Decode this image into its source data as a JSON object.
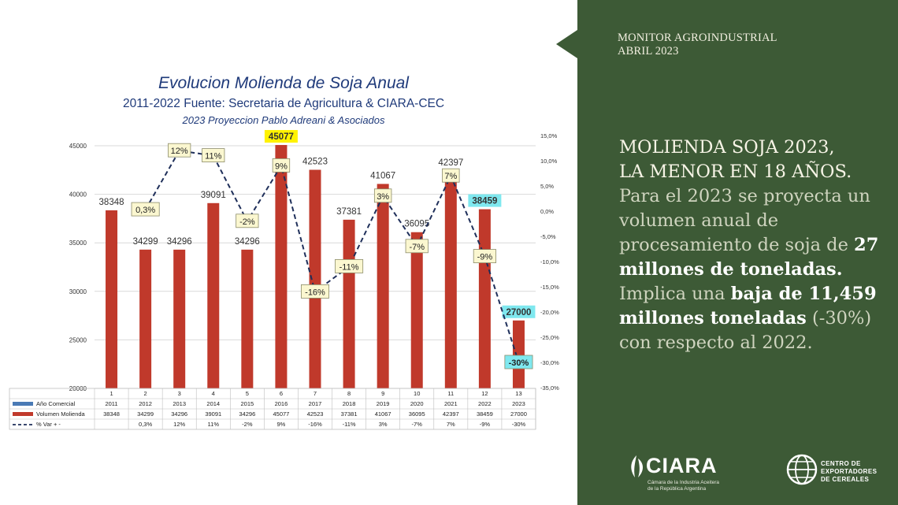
{
  "chart_data": {
    "type": "bar",
    "title": "Evolucion Molienda de Soja Anual",
    "subtitle": "2011-2022 Fuente: Secretaria de Agricultura &  CIARA-CEC",
    "subtitle2": "2023 Proyeccion Pablo Adreani & Asociados",
    "ylim": [
      20000,
      45000
    ],
    "y_ticks": [
      "45000",
      "40000",
      "35000",
      "30000",
      "25000",
      "20000"
    ],
    "y2lim": [
      -35,
      15
    ],
    "y2_ticks": [
      "15,0%",
      "10,0%",
      "5,0%",
      "0,0%",
      "-5,0%",
      "-10,0%",
      "-15,0%",
      "-20,0%",
      "-25,0%",
      "-30,0%",
      "-35,0%"
    ],
    "categories": [
      "1",
      "2",
      "3",
      "4",
      "5",
      "6",
      "7",
      "8",
      "9",
      "10",
      "11",
      "12",
      "13"
    ],
    "series": [
      {
        "name": "Año Comercial",
        "color": "#4a7ab5",
        "values": [
          "2011",
          "2012",
          "2013",
          "2014",
          "2015",
          "2016",
          "2017",
          "2018",
          "2019",
          "2020",
          "2021",
          "2022",
          "2023"
        ]
      },
      {
        "name": "Volumen Molienda",
        "color": "#c0392b",
        "values": [
          38348,
          34299,
          34296,
          39091,
          34296,
          45077,
          42523,
          37381,
          41067,
          36095,
          42397,
          38459,
          27000
        ]
      },
      {
        "name": "% Var + -",
        "color": "#1f2f5a",
        "values": [
          null,
          0.3,
          12,
          11,
          -2,
          9,
          -16,
          -11,
          3,
          -7,
          7,
          -9,
          -30
        ],
        "labels": [
          "",
          "0,3%",
          "12%",
          "11%",
          "-2%",
          "9%",
          "-16%",
          "-11%",
          "3%",
          "-7%",
          "7%",
          "-9%",
          "-30%"
        ]
      }
    ],
    "table_volume_labels": [
      "38348",
      "34299",
      "34296",
      "39091",
      "34296",
      "45077",
      "42523",
      "37381",
      "41067",
      "36095",
      "42397",
      "38459",
      "27000"
    ],
    "bar_labels": [
      "38348",
      "34299",
      "34296",
      "39091",
      "34296",
      "45077",
      "42523",
      "37381",
      "41067",
      "36095",
      "42397",
      "38459",
      "27000"
    ],
    "bar_label_highlights": {
      "5": "#fff200",
      "11": "#7fe8ef",
      "12": "#7fe8ef"
    },
    "pct_label_highlights": {
      "12": "#7fe8ef"
    },
    "pct_label_bg": "#fbf7d0",
    "grid": true,
    "legend": "table-below"
  },
  "panel": {
    "monitor_line1": "MONITOR AGROINDUSTRIAL",
    "monitor_line2": "ABRIL 2023",
    "headline1": "MOLIENDA SOJA 2023,",
    "headline2": "LA MENOR EN 18 AÑOS.",
    "body_1": "Para el 2023 se proyecta un volumen anual de procesamiento de soja de ",
    "body_2": "27 millones de toneladas.",
    "body_3": " Implica una ",
    "body_4": "baja de 11,459 millones toneladas",
    "body_5": " (-30%) con respecto al 2022.",
    "background_color": "#3d5a36"
  },
  "logos": {
    "ciara_word": "CIARA",
    "ciara_sub1": "Cámara de la Industria Aceitera",
    "ciara_sub2": "de la República Argentina",
    "cec_line1": "CENTRO DE",
    "cec_line2": "EXPORTADORES",
    "cec_line3": "DE CEREALES"
  }
}
